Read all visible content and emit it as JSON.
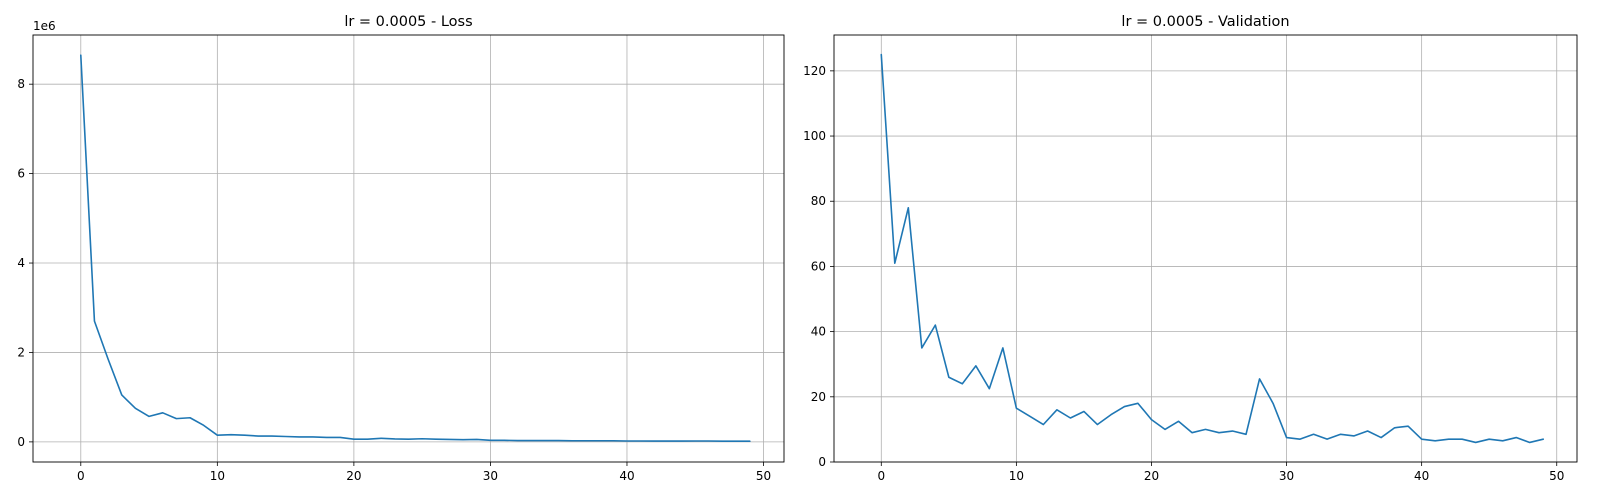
{
  "chart_data": [
    {
      "type": "line",
      "title": "lr = 0.0005 - Loss",
      "xlabel": "",
      "ylabel": "",
      "xlim": [
        -3.5,
        51.5
      ],
      "ylim": [
        -450000,
        9100000
      ],
      "xticks": [
        0,
        10,
        20,
        30,
        40,
        50
      ],
      "xtick_labels": [
        "0",
        "10",
        "20",
        "30",
        "40",
        "50"
      ],
      "yticks": [
        0,
        2000000,
        4000000,
        6000000,
        8000000
      ],
      "ytick_labels": [
        "0",
        "2",
        "4",
        "6",
        "8"
      ],
      "y_offset_label": "1e6",
      "grid": true,
      "line_color": "#1f77b4",
      "series": [
        {
          "x": [
            0,
            1,
            2,
            3,
            4,
            5,
            6,
            7,
            8,
            9,
            10,
            11,
            12,
            13,
            14,
            15,
            16,
            17,
            18,
            19,
            20,
            21,
            22,
            23,
            24,
            25,
            26,
            27,
            28,
            29,
            30,
            31,
            32,
            33,
            34,
            35,
            36,
            37,
            38,
            39,
            40,
            41,
            42,
            43,
            44,
            45,
            46,
            47,
            48,
            49
          ],
          "values": [
            8650000,
            2700000,
            1850000,
            1050000,
            750000,
            570000,
            650000,
            520000,
            540000,
            370000,
            150000,
            160000,
            150000,
            130000,
            130000,
            120000,
            110000,
            110000,
            100000,
            100000,
            60000,
            60000,
            80000,
            65000,
            60000,
            70000,
            60000,
            55000,
            50000,
            55000,
            35000,
            35000,
            30000,
            30000,
            30000,
            30000,
            25000,
            25000,
            25000,
            25000,
            20000,
            20000,
            18000,
            18000,
            18000,
            20000,
            20000,
            15000,
            15000,
            15000
          ]
        }
      ]
    },
    {
      "type": "line",
      "title": "lr = 0.0005 - Validation",
      "xlabel": "",
      "ylabel": "",
      "xlim": [
        -3.5,
        51.5
      ],
      "ylim": [
        0,
        131
      ],
      "xticks": [
        0,
        10,
        20,
        30,
        40,
        50
      ],
      "xtick_labels": [
        "0",
        "10",
        "20",
        "30",
        "40",
        "50"
      ],
      "yticks": [
        0,
        20,
        40,
        60,
        80,
        100,
        120
      ],
      "ytick_labels": [
        "0",
        "20",
        "40",
        "60",
        "80",
        "100",
        "120"
      ],
      "y_offset_label": "",
      "grid": true,
      "line_color": "#1f77b4",
      "series": [
        {
          "x": [
            0,
            1,
            2,
            3,
            4,
            5,
            6,
            7,
            8,
            9,
            10,
            11,
            12,
            13,
            14,
            15,
            16,
            17,
            18,
            19,
            20,
            21,
            22,
            23,
            24,
            25,
            26,
            27,
            28,
            29,
            30,
            31,
            32,
            33,
            34,
            35,
            36,
            37,
            38,
            39,
            40,
            41,
            42,
            43,
            44,
            45,
            46,
            47,
            48,
            49
          ],
          "values": [
            125,
            61,
            78,
            35,
            42,
            26,
            24,
            29.5,
            22.5,
            35,
            16.5,
            14,
            11.5,
            16,
            13.5,
            15.5,
            11.5,
            14.5,
            17,
            18,
            13,
            10,
            12.5,
            9,
            10,
            9,
            9.5,
            8.5,
            25.5,
            18,
            7.5,
            7,
            8.5,
            7,
            8.5,
            8,
            9.5,
            7.5,
            10.5,
            11,
            7,
            6.5,
            7,
            7,
            6,
            7,
            6.5,
            7.5,
            6,
            7
          ]
        }
      ]
    }
  ]
}
